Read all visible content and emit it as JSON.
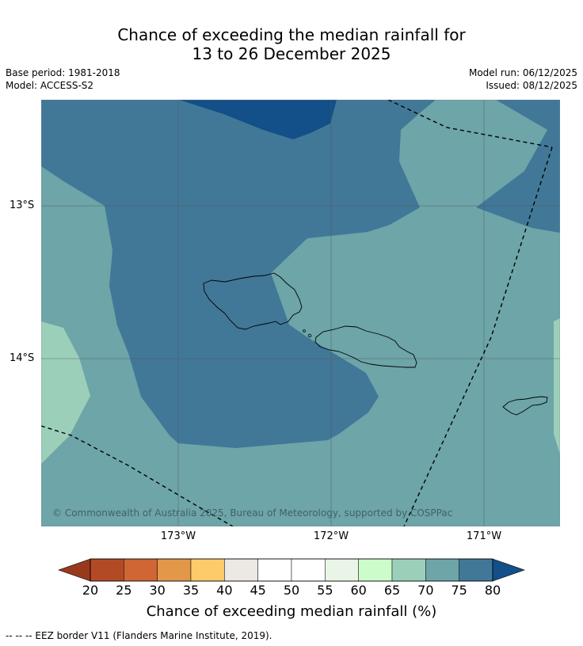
{
  "header": {
    "title_line1": "Chance of exceeding the median rainfall for",
    "title_line2": "13 to 26 December 2025",
    "base_period": "Base period: 1981-2018",
    "model": "Model: ACCESS-S2",
    "model_run": "Model run: 06/12/2025",
    "issued": "Issued: 08/12/2025"
  },
  "map": {
    "copyright": "© Commonwealth of Australia 2025, Bureau of Meteorology, supported by COSPPac",
    "lat_labels": [
      "13°S",
      "14°S"
    ],
    "lon_labels": [
      "173°W",
      "172°W",
      "171°W"
    ],
    "colors": {
      "c65_70": "#9ccfba",
      "c70_75": "#6da5a8",
      "c75_80": "#417898",
      "c80plus": "#134f88",
      "land_outline": "#000000",
      "grid": "#555555"
    }
  },
  "colorbar": {
    "ticks": [
      "20",
      "25",
      "30",
      "35",
      "40",
      "45",
      "50",
      "55",
      "60",
      "65",
      "70",
      "75",
      "80"
    ],
    "colors": [
      "#b34a26",
      "#cf6633",
      "#e39748",
      "#fdcb69",
      "#ece8e4",
      "#ffffff",
      "#ffffff",
      "#e9f5e6",
      "#cdfccb",
      "#9ccfba",
      "#6da5a8",
      "#417898"
    ],
    "under_color": "#98391e",
    "over_color": "#134f88",
    "label": "Chance of exceeding median rainfall (%)"
  },
  "footnote": "--  --  -- EEZ border V11 (Flanders Marine Institute, 2019)."
}
